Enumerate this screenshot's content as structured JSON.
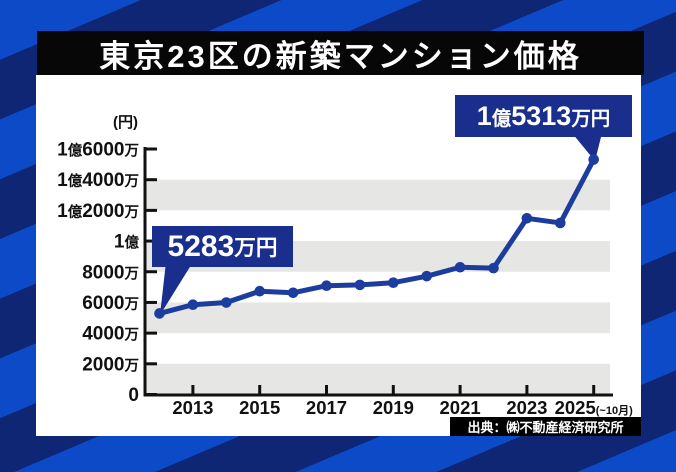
{
  "title": "東京23区の新築マンション価格",
  "unit_label": "(円)",
  "source": "出典：㈱不動産経済研究所",
  "callouts": {
    "start": {
      "parts": [
        {
          "t": "5283"
        },
        {
          "t": "万円",
          "small": true
        }
      ]
    },
    "end": {
      "parts": [
        {
          "t": "1"
        },
        {
          "t": "億",
          "small": true
        },
        {
          "t": "5313"
        },
        {
          "t": "万円",
          "small": true
        }
      ]
    }
  },
  "colors": {
    "line": "#1c3d9e",
    "callout_bg": "#1a2e8e",
    "band": "#e6e6e5",
    "stripe_bright": "#0c4ac8",
    "stripe_dark": "#0e2674",
    "banner_bg": "#070707",
    "axis": "#111111"
  },
  "chart_data": {
    "type": "line",
    "title": "東京23区の新築マンション価格",
    "unit": "万円",
    "x": [
      2012,
      2013,
      2014,
      2015,
      2016,
      2017,
      2018,
      2019,
      2020,
      2021,
      2022,
      2023,
      2024,
      2025
    ],
    "values": [
      5283,
      5853,
      5994,
      6732,
      6629,
      7089,
      7142,
      7286,
      7712,
      8293,
      8236,
      11483,
      11181,
      15313
    ],
    "x_ticks": [
      {
        "label": "2013",
        "year": 2013
      },
      {
        "label": "2015",
        "year": 2015
      },
      {
        "label": "2017",
        "year": 2017
      },
      {
        "label": "2019",
        "year": 2019
      },
      {
        "label": "2021",
        "year": 2021
      },
      {
        "label": "2023",
        "year": 2023
      },
      {
        "label": "2025",
        "year": 2025,
        "suffix": "(~10月)"
      }
    ],
    "y_ticks": [
      {
        "value": 0,
        "label": "0"
      },
      {
        "value": 2000,
        "label": "2000万"
      },
      {
        "value": 4000,
        "label": "4000万"
      },
      {
        "value": 6000,
        "label": "6000万"
      },
      {
        "value": 8000,
        "label": "8000万"
      },
      {
        "value": 10000,
        "label": "1億"
      },
      {
        "value": 12000,
        "label": "1億2000万"
      },
      {
        "value": 14000,
        "label": "1億4000万"
      },
      {
        "value": 16000,
        "label": "1億6000万"
      }
    ],
    "ylim": [
      0,
      16000
    ],
    "grid": "alternating-gray-bands",
    "legend": "none",
    "annotations": [
      {
        "year": 2012,
        "text": "5283万円"
      },
      {
        "year": 2025,
        "text": "1億5313万円"
      }
    ]
  }
}
